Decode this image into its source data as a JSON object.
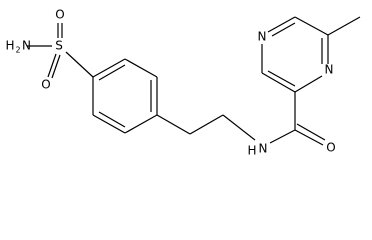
{
  "atoms": {
    "amine_h": "H",
    "amine_sub": "2",
    "amine_n": "N",
    "sulfur": "S",
    "oxygen_top": "O",
    "oxygen_bottom": "O",
    "amide_h": "H",
    "amide_n": "N",
    "carbonyl_o": "O",
    "pyrazine_n1": "N",
    "pyrazine_n4": "N"
  }
}
